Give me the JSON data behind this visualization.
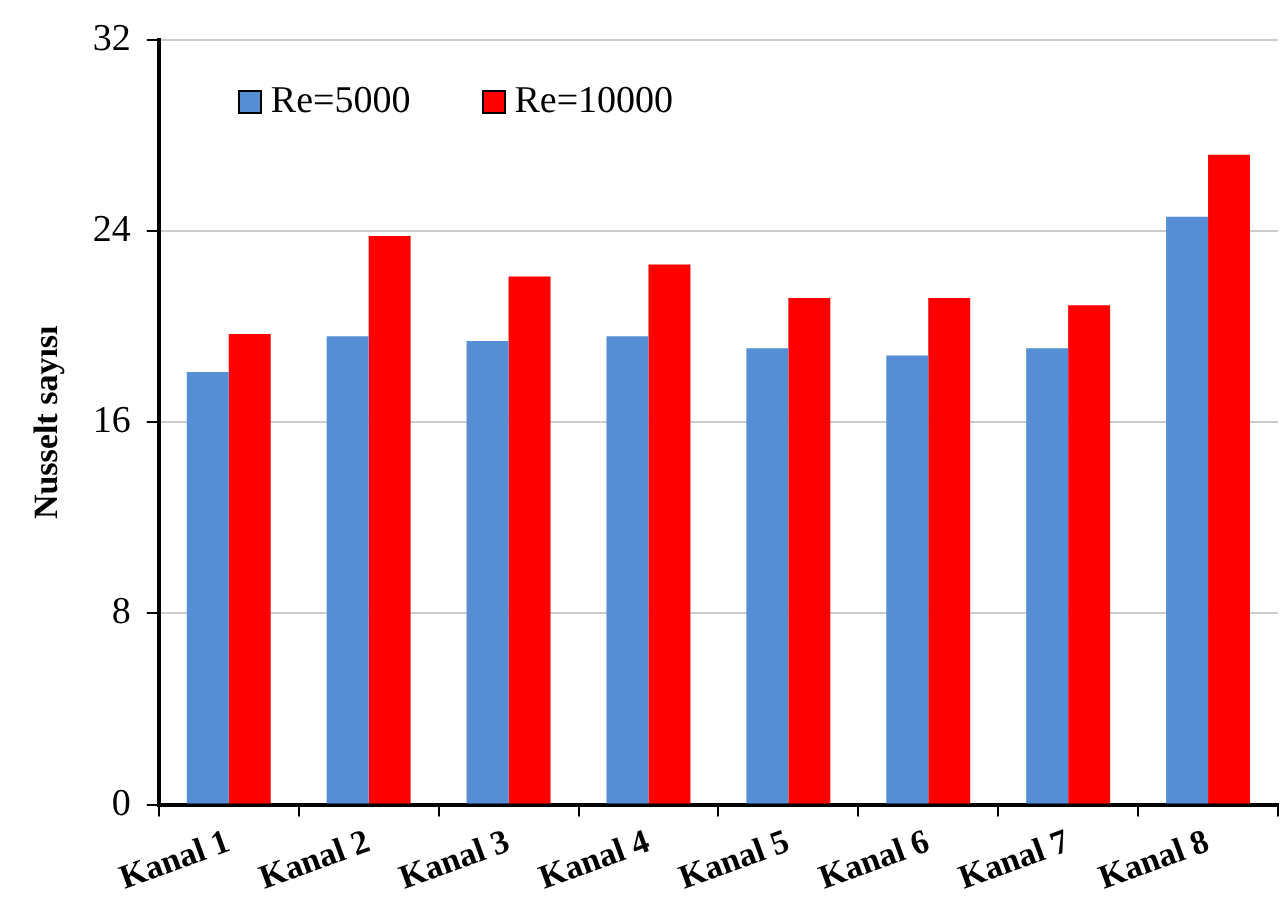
{
  "chart_data": {
    "type": "bar",
    "ylabel": "Nusselt sayısı",
    "categories": [
      "Kanal 1",
      "Kanal 2",
      "Kanal 3",
      "Kanal 4",
      "Kanal 5",
      "Kanal 6",
      "Kanal 7",
      "Kanal 8"
    ],
    "series": [
      {
        "name": "Re=5000",
        "color": "#558ed5",
        "values": [
          18.1,
          19.6,
          19.4,
          19.6,
          19.1,
          18.8,
          19.1,
          24.6
        ]
      },
      {
        "name": "Re=10000",
        "color": "#ff0000",
        "values": [
          19.7,
          23.8,
          22.1,
          22.6,
          21.2,
          21.2,
          20.9,
          27.2
        ]
      }
    ],
    "ylim": [
      0,
      32
    ],
    "yticks": [
      0,
      8,
      16,
      24,
      32
    ],
    "grid": "y",
    "legend": "top left"
  }
}
